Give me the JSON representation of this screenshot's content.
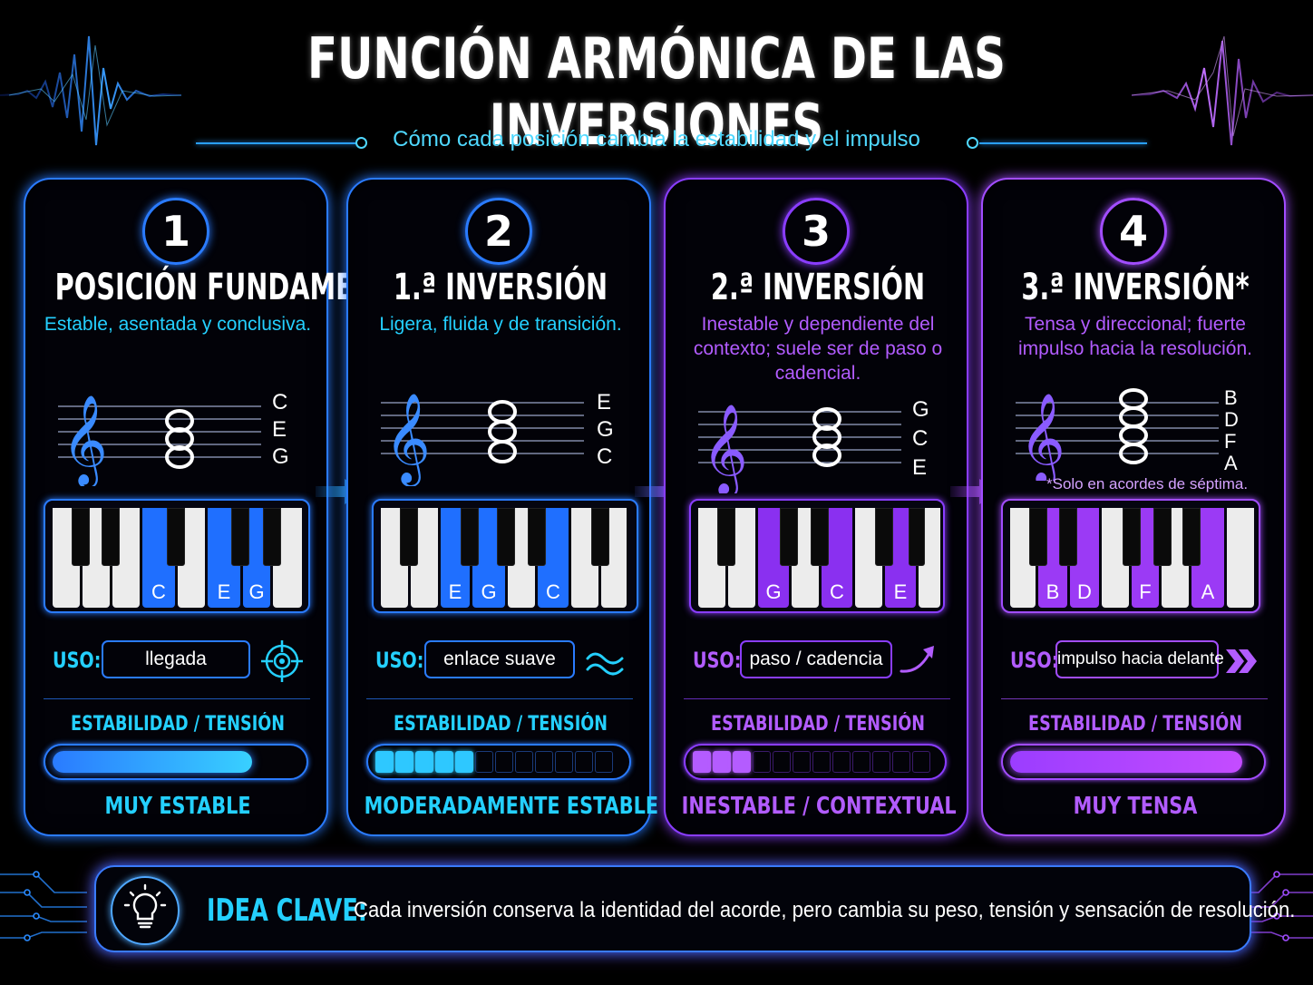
{
  "header": {
    "title": "FUNCIÓN ARMÓNICA DE LAS INVERSIONES",
    "subtitle": "Cómo cada posición cambia la estabilidad y el impulso"
  },
  "colors": {
    "blue": "#1e8cff",
    "cyan": "#24d0ff",
    "purple": "#9b3dff",
    "violet": "#b45cff"
  },
  "labels": {
    "uso": "USO:",
    "stability": "ESTABILIDAD / TENSIÓN"
  },
  "cards": [
    {
      "number": "1",
      "title": "POSICIÓN FUNDAMENTAL",
      "desc": "Estable, asentada y conclusiva.",
      "notes": [
        "C",
        "E",
        "G"
      ],
      "keys": [
        "C",
        "E",
        "G"
      ],
      "uso": "llegada",
      "uso_icon": "target-icon",
      "stability": 0.85,
      "result": "MUY ESTABLE"
    },
    {
      "number": "2",
      "title": "1.ª INVERSIÓN",
      "desc": "Ligera, fluida y de transición.",
      "notes": [
        "E",
        "G",
        "C"
      ],
      "keys": [
        "E",
        "G",
        "C"
      ],
      "uso": "enlace suave",
      "uso_icon": "wave-icon",
      "stability": 0.4,
      "result": "MODERADAMENTE ESTABLE"
    },
    {
      "number": "3",
      "title": "2.ª INVERSIÓN",
      "desc": "Inestable y dependiente del contexto; suele ser de paso o cadencial.",
      "notes": [
        "G",
        "C",
        "E"
      ],
      "keys": [
        "G",
        "C",
        "E"
      ],
      "uso": "paso / cadencia",
      "uso_icon": "curved-arrow-icon",
      "stability": 0.27,
      "result": "INESTABLE / CONTEXTUAL"
    },
    {
      "number": "4",
      "title": "3.ª INVERSIÓN*",
      "desc": "Tensa y direccional; fuerte impulso hacia la resolución.",
      "notes": [
        "B",
        "D",
        "F",
        "A"
      ],
      "keys": [
        "B",
        "D",
        "F",
        "A"
      ],
      "uso": "impulso hacia delante",
      "uso_icon": "double-chevron-icon",
      "stability": 0.95,
      "result": "MUY TENSA",
      "footnote": "*Solo en acordes de séptima."
    }
  ],
  "idea": {
    "label": "IDEA CLAVE:",
    "text": "Cada inversión conserva la identidad del acorde, pero cambia su peso, tensión y sensación de resolución."
  }
}
